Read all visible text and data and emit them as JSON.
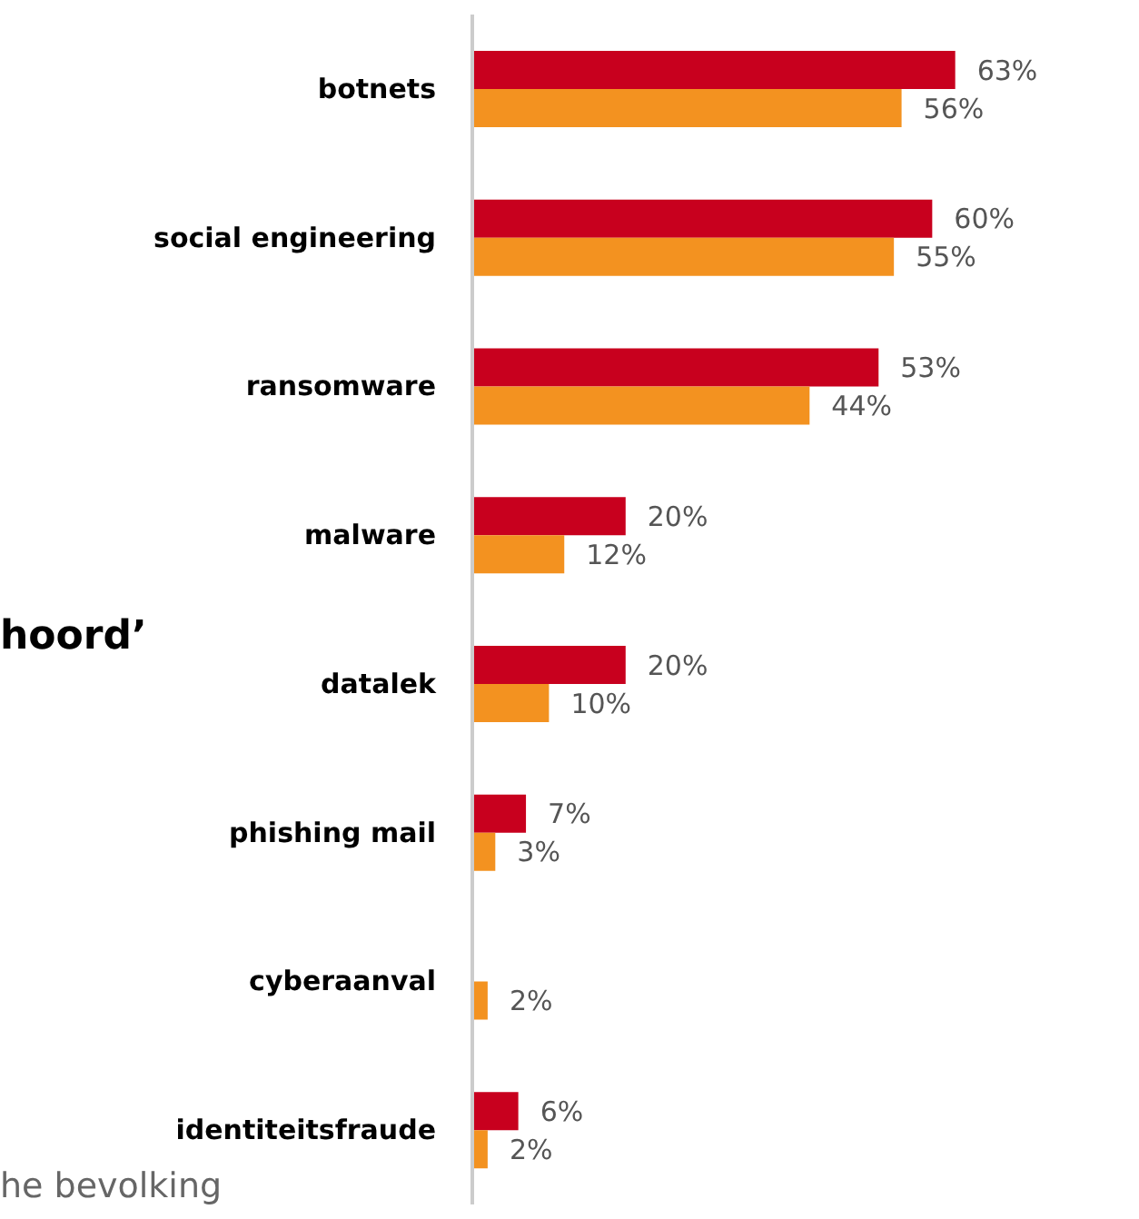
{
  "chart_data": {
    "type": "bar",
    "orientation": "horizontal",
    "categories": [
      "botnets",
      "social engineering",
      "ransomware",
      "malware",
      "datalek",
      "phishing mail",
      "cyberaanval",
      "identiteitsfraude"
    ],
    "series": [
      {
        "color": "#c8001e",
        "values": [
          63,
          60,
          53,
          20,
          20,
          7,
          null,
          6
        ],
        "value_labels": [
          "63%",
          "60%",
          "53%",
          "20%",
          "20%",
          "7%",
          null,
          "6%"
        ]
      },
      {
        "color": "#f39220",
        "values": [
          56,
          55,
          44,
          12,
          10,
          3,
          2,
          2
        ],
        "value_labels": [
          "56%",
          "55%",
          "44%",
          "12%",
          "10%",
          "3%",
          "2%",
          "2%"
        ]
      }
    ],
    "annotations": [
      "hoord’",
      "he bevolking"
    ]
  }
}
